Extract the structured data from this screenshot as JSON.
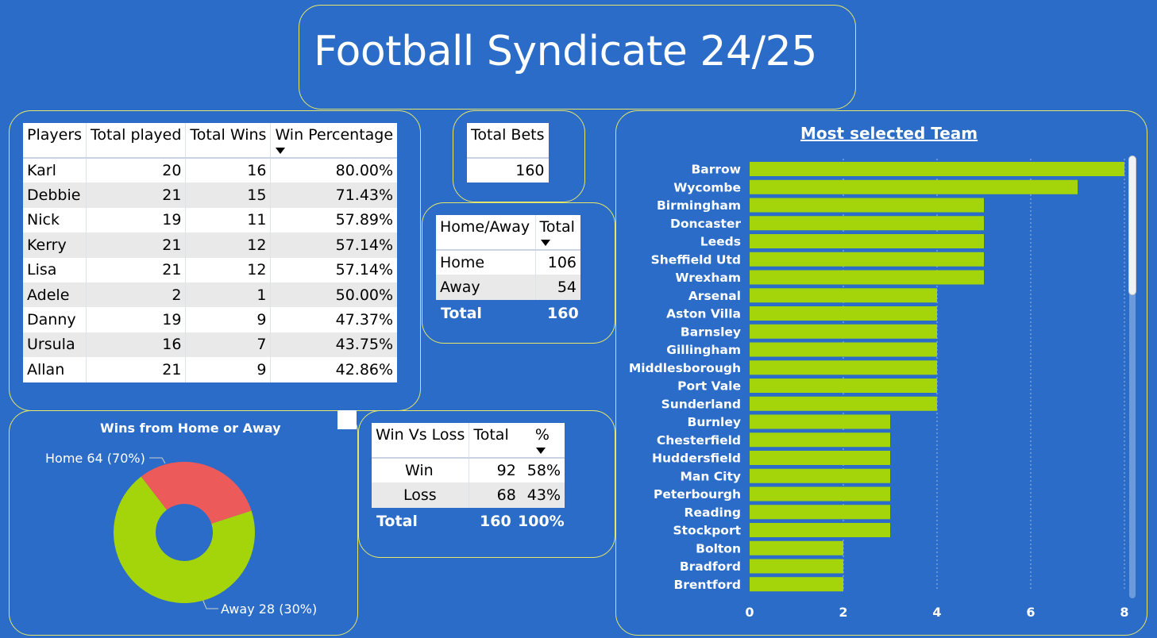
{
  "title": "Football Syndicate 24/25",
  "players_table": {
    "headers": [
      "Players",
      "Total played",
      "Total Wins",
      "Win Percentage"
    ],
    "rows": [
      [
        "Karl",
        "20",
        "16",
        "80.00%"
      ],
      [
        "Debbie",
        "21",
        "15",
        "71.43%"
      ],
      [
        "Nick",
        "19",
        "11",
        "57.89%"
      ],
      [
        "Kerry",
        "21",
        "12",
        "57.14%"
      ],
      [
        "Lisa",
        "21",
        "12",
        "57.14%"
      ],
      [
        "Adele",
        "2",
        "1",
        "50.00%"
      ],
      [
        "Danny",
        "19",
        "9",
        "47.37%"
      ],
      [
        "Ursula",
        "16",
        "7",
        "43.75%"
      ],
      [
        "Allan",
        "21",
        "9",
        "42.86%"
      ]
    ]
  },
  "total_bets": {
    "header": "Total Bets",
    "value": "160"
  },
  "home_away": {
    "headers": [
      "Home/Away",
      "Total"
    ],
    "rows": [
      [
        "Home",
        "106"
      ],
      [
        "Away",
        "54"
      ]
    ],
    "total_label": "Total",
    "total_value": "160"
  },
  "win_loss": {
    "headers": [
      "Win Vs Loss",
      "Total",
      "%"
    ],
    "rows": [
      [
        "Win",
        "92",
        "58%"
      ],
      [
        "Loss",
        "68",
        "43%"
      ]
    ],
    "total_label": "Total",
    "total_value": "160",
    "total_pct": "100%"
  },
  "donut": {
    "title": "Wins from Home or Away",
    "home_label": "Home 64 (70%)",
    "away_label": "Away 28 (30%)",
    "home_color": "#a4d40a",
    "away_color": "#ec5a5a"
  },
  "bar_chart": {
    "title": "Most selected Team",
    "bar_color": "#a4d40a"
  },
  "chart_data": [
    {
      "type": "bar",
      "orientation": "horizontal",
      "title": "Most selected Team",
      "categories": [
        "Barrow",
        "Wycombe",
        "Birmingham",
        "Doncaster",
        "Leeds",
        "Sheffield Utd",
        "Wrexham",
        "Arsenal",
        "Aston Villa",
        "Barnsley",
        "Gillingham",
        "Middlesborough",
        "Port Vale",
        "Sunderland",
        "Burnley",
        "Chesterfield",
        "Huddersfield",
        "Man City",
        "Peterbourgh",
        "Reading",
        "Stockport",
        "Bolton",
        "Bradford",
        "Brentford"
      ],
      "values": [
        8,
        7,
        5,
        5,
        5,
        5,
        5,
        4,
        4,
        4,
        4,
        4,
        4,
        4,
        3,
        3,
        3,
        3,
        3,
        3,
        3,
        2,
        2,
        2
      ],
      "xticks": [
        "0",
        "2",
        "4",
        "6",
        "8"
      ],
      "xlim": [
        0,
        8
      ],
      "grid": true,
      "bar_color": "#a4d40a"
    },
    {
      "type": "pie",
      "title": "Wins from Home or Away",
      "categories": [
        "Home",
        "Away"
      ],
      "values": [
        64,
        28
      ],
      "colors": [
        "#a4d40a",
        "#ec5a5a"
      ],
      "donut": true
    }
  ]
}
